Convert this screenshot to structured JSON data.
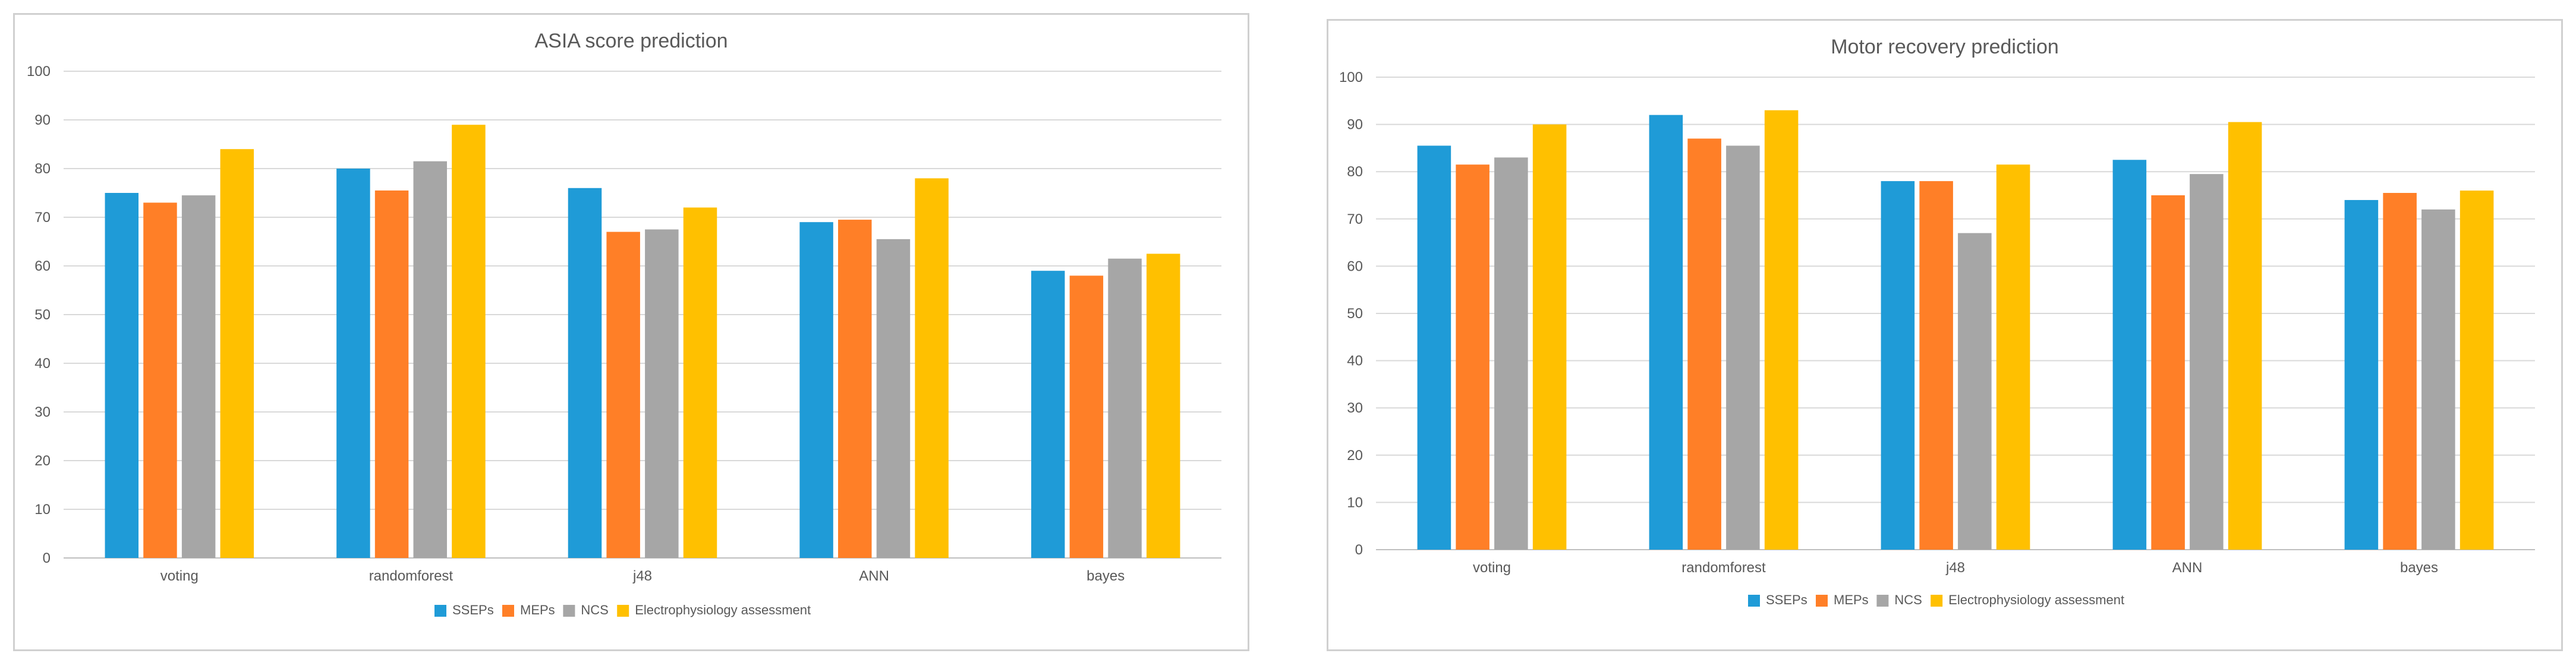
{
  "chart_data": [
    {
      "type": "bar",
      "title": "ASIA score prediction",
      "xlabel": "",
      "ylabel": "",
      "ylim": [
        0,
        100
      ],
      "ytick_step": 10,
      "grid": true,
      "legend_position": "bottom",
      "categories": [
        "voting",
        "randomforest",
        "j48",
        "ANN",
        "bayes"
      ],
      "series": [
        {
          "name": "SSEPs",
          "color": "#1f9bd7",
          "values": [
            75,
            80,
            76,
            69,
            59
          ]
        },
        {
          "name": "MEPs",
          "color": "#ff7f27",
          "values": [
            73,
            75.5,
            67,
            69.5,
            58
          ]
        },
        {
          "name": "NCS",
          "color": "#a6a6a6",
          "values": [
            74.5,
            81.5,
            67.5,
            65.5,
            61.5
          ]
        },
        {
          "name": "Electrophysiology assessment",
          "color": "#ffc000",
          "values": [
            84,
            89,
            72,
            78,
            62.5
          ]
        }
      ]
    },
    {
      "type": "bar",
      "title": "Motor recovery prediction",
      "xlabel": "",
      "ylabel": "",
      "ylim": [
        0,
        100
      ],
      "ytick_step": 10,
      "grid": true,
      "legend_position": "bottom",
      "categories": [
        "voting",
        "randomforest",
        "j48",
        "ANN",
        "bayes"
      ],
      "series": [
        {
          "name": "SSEPs",
          "color": "#1f9bd7",
          "values": [
            85.5,
            92,
            78,
            82.5,
            74
          ]
        },
        {
          "name": "MEPs",
          "color": "#ff7f27",
          "values": [
            81.5,
            87,
            78,
            75,
            75.5
          ]
        },
        {
          "name": "NCS",
          "color": "#a6a6a6",
          "values": [
            83,
            85.5,
            67,
            79.5,
            72
          ]
        },
        {
          "name": "Electrophysiology assessment",
          "color": "#ffc000",
          "values": [
            90,
            93,
            81.5,
            90.5,
            76
          ]
        }
      ]
    }
  ]
}
